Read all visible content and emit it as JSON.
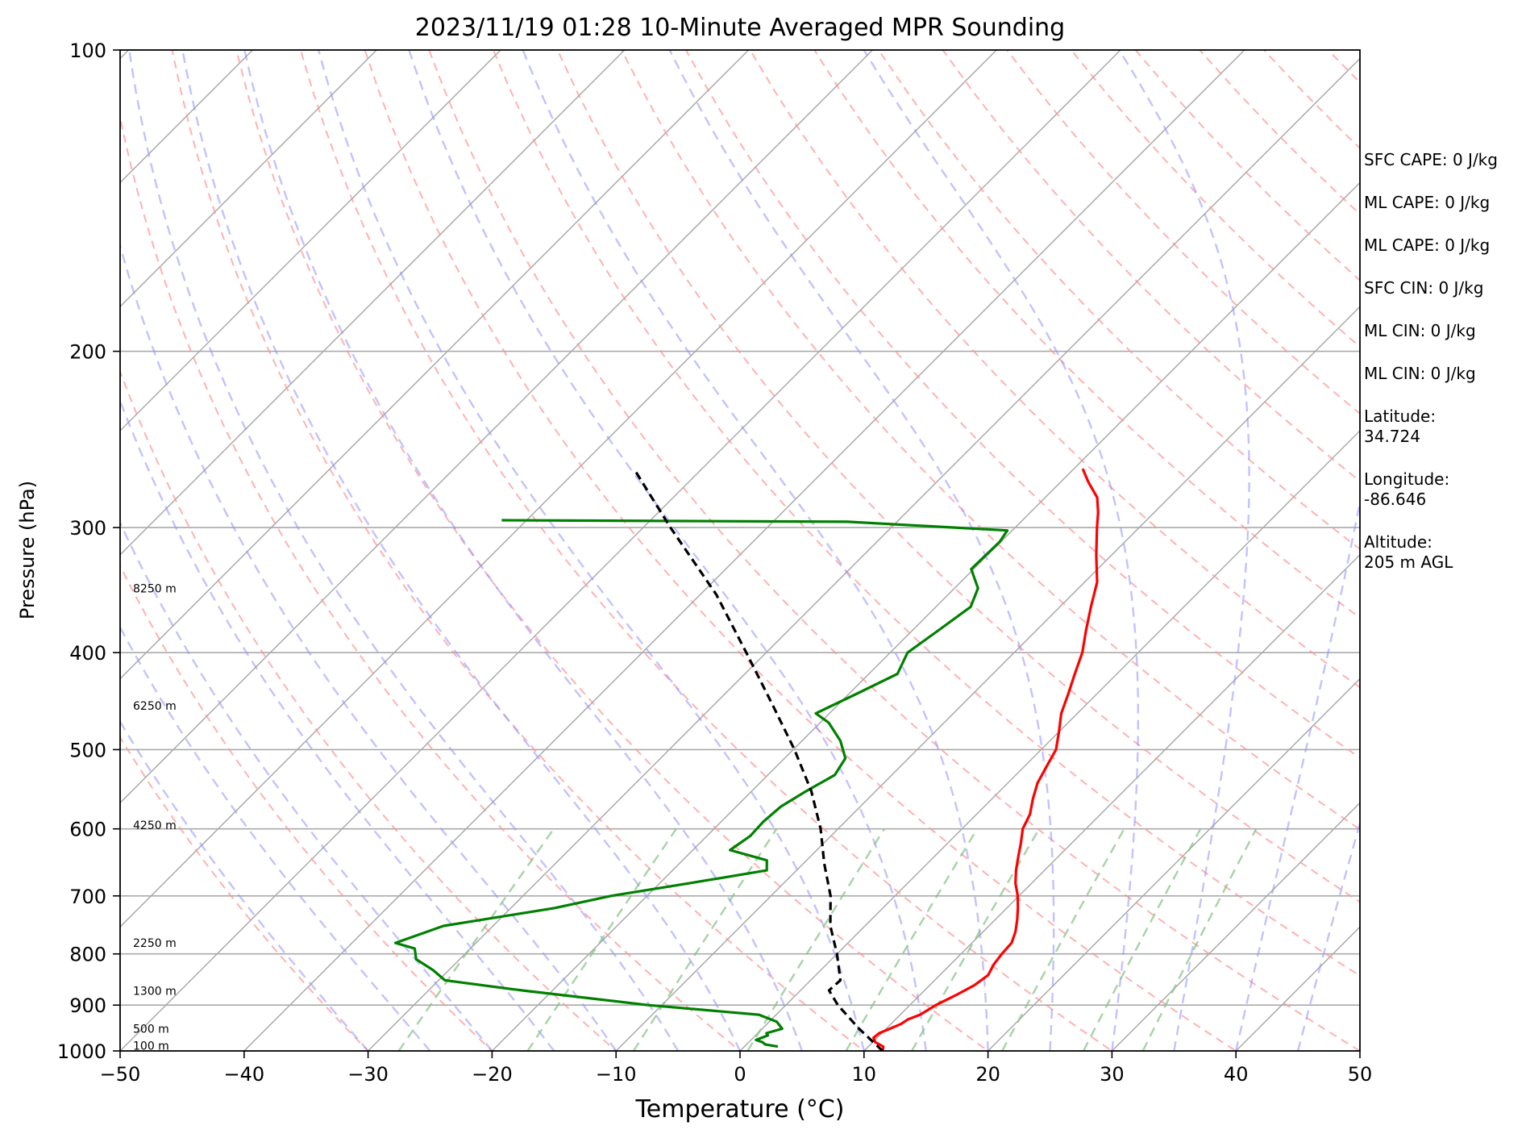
{
  "chart_data": {
    "type": "line",
    "title": "2023/11/19 01:28 10-Minute Averaged MPR Sounding",
    "xlabel": "Temperature (°C)",
    "ylabel": "Pressure (hPa)",
    "xlim": [
      -50,
      50
    ],
    "ylim": [
      1000,
      100
    ],
    "y_scale": "log",
    "skew": true,
    "x_ticks": [
      -50,
      -40,
      -30,
      -20,
      -10,
      0,
      10,
      20,
      30,
      40,
      50
    ],
    "x_tick_labels": [
      "−50",
      "−40",
      "−30",
      "−20",
      "−10",
      "0",
      "10",
      "20",
      "30",
      "40",
      "50"
    ],
    "y_ticks": [
      1000,
      900,
      800,
      700,
      600,
      500,
      400,
      300,
      200,
      100
    ],
    "grid": true,
    "series": [
      {
        "color": "#ff0000",
        "points": [
          [
            1000,
            11.5
          ],
          [
            990,
            11.2
          ],
          [
            980,
            10.2
          ],
          [
            970,
            9.7
          ],
          [
            960,
            9.8
          ],
          [
            950,
            10.3
          ],
          [
            940,
            10.8
          ],
          [
            930,
            11.0
          ],
          [
            920,
            11.6
          ],
          [
            900,
            12.1
          ],
          [
            880,
            12.9
          ],
          [
            860,
            13.6
          ],
          [
            840,
            13.9
          ],
          [
            820,
            13.5
          ],
          [
            800,
            13.3
          ],
          [
            780,
            13.2
          ],
          [
            760,
            12.6
          ],
          [
            740,
            11.8
          ],
          [
            720,
            10.9
          ],
          [
            700,
            9.9
          ],
          [
            680,
            8.7
          ],
          [
            660,
            7.7
          ],
          [
            640,
            6.8
          ],
          [
            620,
            5.9
          ],
          [
            600,
            4.9
          ],
          [
            580,
            4.3
          ],
          [
            560,
            3.3
          ],
          [
            540,
            2.4
          ],
          [
            520,
            1.8
          ],
          [
            500,
            1.2
          ],
          [
            480,
            0.0
          ],
          [
            460,
            -1.3
          ],
          [
            440,
            -2.3
          ],
          [
            420,
            -3.4
          ],
          [
            400,
            -4.5
          ],
          [
            380,
            -6.0
          ],
          [
            360,
            -7.5
          ],
          [
            340,
            -9.0
          ],
          [
            320,
            -11.2
          ],
          [
            300,
            -13.4
          ],
          [
            290,
            -14.5
          ],
          [
            280,
            -15.8
          ],
          [
            270,
            -17.8
          ],
          [
            262,
            -19.3
          ]
        ]
      },
      {
        "color": "#008000",
        "points": [
          [
            990,
            2.7
          ],
          [
            985,
            1.5
          ],
          [
            980,
            1.1
          ],
          [
            975,
            0.4
          ],
          [
            965,
            1.0
          ],
          [
            960,
            0.7
          ],
          [
            950,
            1.6
          ],
          [
            935,
            0.6
          ],
          [
            920,
            -1.4
          ],
          [
            900,
            -11.1
          ],
          [
            870,
            -22.5
          ],
          [
            850,
            -29.5
          ],
          [
            830,
            -31.3
          ],
          [
            810,
            -33.5
          ],
          [
            790,
            -34.5
          ],
          [
            780,
            -36.5
          ],
          [
            750,
            -34.0
          ],
          [
            720,
            -26.5
          ],
          [
            700,
            -22.9
          ],
          [
            680,
            -17.6
          ],
          [
            660,
            -12.4
          ],
          [
            645,
            -13.2
          ],
          [
            630,
            -17.0
          ],
          [
            610,
            -16.5
          ],
          [
            590,
            -16.6
          ],
          [
            570,
            -16.4
          ],
          [
            550,
            -15.6
          ],
          [
            530,
            -14.6
          ],
          [
            510,
            -15.1
          ],
          [
            490,
            -16.9
          ],
          [
            470,
            -19.3
          ],
          [
            460,
            -21.1
          ],
          [
            440,
            -19.4
          ],
          [
            420,
            -17.7
          ],
          [
            400,
            -18.6
          ],
          [
            380,
            -17.9
          ],
          [
            360,
            -17.2
          ],
          [
            345,
            -18.1
          ],
          [
            330,
            -20.2
          ],
          [
            310,
            -20.1
          ],
          [
            302,
            -20.4
          ],
          [
            296,
            -34.0
          ],
          [
            295,
            -62.0
          ]
        ]
      },
      {
        "color": "#000000",
        "style": "dashed",
        "points": [
          [
            1000,
            11.5
          ],
          [
            950,
            7.8
          ],
          [
            900,
            4.2
          ],
          [
            870,
            2.3
          ],
          [
            850,
            2.4
          ],
          [
            800,
            0.0
          ],
          [
            750,
            -2.8
          ],
          [
            700,
            -5.2
          ],
          [
            650,
            -8.3
          ],
          [
            600,
            -11.4
          ],
          [
            550,
            -15.2
          ],
          [
            500,
            -19.9
          ],
          [
            450,
            -25.4
          ],
          [
            400,
            -31.6
          ],
          [
            350,
            -38.7
          ],
          [
            300,
            -47.8
          ],
          [
            262,
            -55.5
          ]
        ]
      }
    ],
    "height_labels": [
      {
        "label": "100 m",
        "pressure": 988
      },
      {
        "label": "500 m",
        "pressure": 950
      },
      {
        "label": "1300 m",
        "pressure": 871
      },
      {
        "label": "2250 m",
        "pressure": 780
      },
      {
        "label": "4250 m",
        "pressure": 595
      },
      {
        "label": "6250 m",
        "pressure": 452
      },
      {
        "label": "8250 m",
        "pressure": 345
      }
    ],
    "reference_lines": {
      "dry_adiabats": {
        "color": "#ff9090",
        "style": "dashed"
      },
      "moist_adiabats": {
        "color": "#9090ff",
        "style": "dashed"
      },
      "mixing_ratio": {
        "color": "#80c080",
        "style": "dashed"
      },
      "isotherms": {
        "color": "#888888",
        "style": "solid"
      }
    }
  },
  "stats": {
    "sfc_cape": "SFC CAPE: 0 J/kg",
    "ml_cape_1": "ML CAPE: 0 J/kg",
    "ml_cape_2": "ML CAPE: 0 J/kg",
    "sfc_cin": "SFC CIN: 0 J/kg",
    "ml_cin_1": "ML CIN: 0 J/kg",
    "ml_cin_2": "ML CIN: 0 J/kg",
    "latitude": "Latitude:\n34.724",
    "longitude": "Longitude:\n-86.646",
    "altitude": "Altitude:\n205 m AGL"
  }
}
